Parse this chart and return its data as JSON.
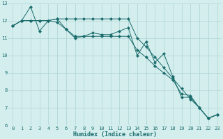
{
  "xlabel": "Humidex (Indice chaleur)",
  "bg_color": "#d4eeee",
  "line_color": "#1a6b6b",
  "grid_color": "#aed4d4",
  "xlim": [
    -0.5,
    23.5
  ],
  "ylim": [
    6,
    13
  ],
  "yticks": [
    6,
    7,
    8,
    9,
    10,
    11,
    12,
    13
  ],
  "xticks": [
    0,
    1,
    2,
    3,
    4,
    5,
    6,
    7,
    8,
    9,
    10,
    11,
    12,
    13,
    14,
    15,
    16,
    17,
    18,
    19,
    20,
    21,
    22,
    23
  ],
  "series": [
    [
      11.7,
      12.0,
      12.8,
      11.4,
      12.0,
      12.1,
      11.5,
      11.0,
      11.1,
      11.3,
      11.2,
      11.2,
      11.4,
      11.6,
      10.0,
      10.8,
      9.6,
      10.1,
      8.8,
      7.6,
      7.6,
      7.0,
      6.4,
      6.6
    ],
    [
      11.7,
      12.0,
      12.0,
      12.0,
      12.0,
      12.1,
      12.1,
      12.1,
      12.1,
      12.1,
      12.1,
      12.1,
      12.1,
      12.1,
      11.0,
      10.5,
      9.9,
      9.3,
      8.7,
      8.1,
      7.5,
      7.0,
      6.4,
      6.6
    ],
    [
      11.7,
      12.0,
      12.0,
      12.0,
      12.0,
      11.9,
      11.5,
      11.1,
      11.1,
      11.1,
      11.1,
      11.1,
      11.1,
      11.1,
      10.3,
      9.9,
      9.4,
      9.0,
      8.6,
      7.8,
      7.7,
      7.0,
      6.4,
      6.6
    ]
  ],
  "tick_fontsize": 5,
  "xlabel_fontsize": 6,
  "marker_size": 2.2
}
